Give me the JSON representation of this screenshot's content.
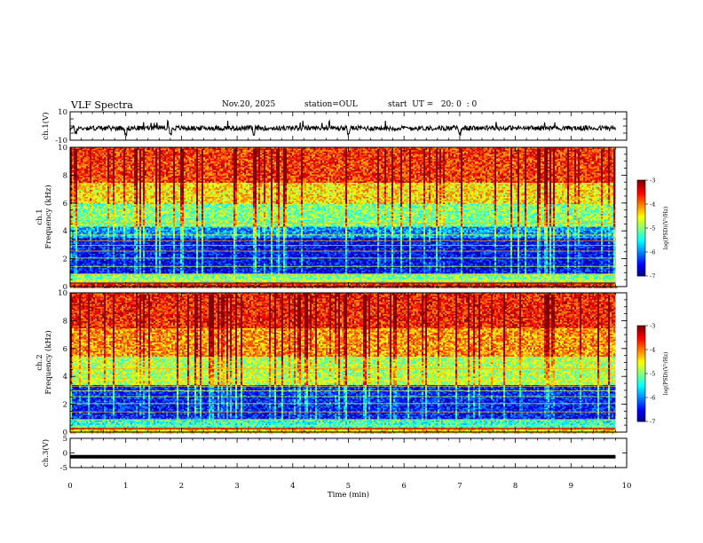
{
  "header": {
    "title": "VLF Spectra",
    "date": "Nov.20, 2025",
    "station": "station=OUL",
    "start": "start  UT =   20: 0  : 0"
  },
  "chart_data": [
    {
      "type": "line",
      "panel": "ch1-waveform",
      "ylabel": "ch.1(V)",
      "ylim": [
        -10,
        10
      ],
      "yticks": [
        "10",
        "-10"
      ],
      "xlim": [
        0,
        10
      ],
      "baseline": 0,
      "series": [
        {
          "values": "noisy waveform centred near 0 V with spikes to about -4 V near t=0.1, 1.0, 1.8, 3.3, 5.0, 7.0 min"
        }
      ],
      "color": "#000000"
    },
    {
      "type": "heatmap",
      "panel": "ch1-spectrogram",
      "ylabel": "ch.1 Frequency (kHz)",
      "ylim": [
        0,
        10
      ],
      "yticks": [
        "0",
        "2",
        "4",
        "6",
        "8",
        "10"
      ],
      "xlim": [
        0,
        10
      ],
      "data_xmax": 9.8,
      "bands": [
        {
          "from": 0.0,
          "to": 0.3,
          "level": -3.6
        },
        {
          "from": 0.3,
          "to": 1.0,
          "level": -5.0
        },
        {
          "from": 1.0,
          "to": 3.5,
          "level": -6.5
        },
        {
          "from": 3.5,
          "to": 4.3,
          "level": -5.9
        },
        {
          "from": 4.3,
          "to": 6.0,
          "level": -5.0
        },
        {
          "from": 6.0,
          "to": 7.5,
          "level": -4.4
        },
        {
          "from": 7.5,
          "to": 10.0,
          "level": -3.7
        }
      ],
      "colorbar": {
        "label": "log(PSD)(V²/Hz)",
        "range": [
          -7,
          -3
        ],
        "ticks": [
          "-3",
          "-4",
          "-5",
          "-6",
          "-7"
        ]
      }
    },
    {
      "type": "heatmap",
      "panel": "ch2-spectrogram",
      "ylabel": "ch.2 Frequency (kHz)",
      "ylim": [
        0,
        10
      ],
      "yticks": [
        "0",
        "2",
        "4",
        "6",
        "8",
        "10"
      ],
      "xlim": [
        0,
        10
      ],
      "data_xmax": 9.8,
      "bands": [
        {
          "from": 0.0,
          "to": 0.4,
          "level": -4.4
        },
        {
          "from": 0.4,
          "to": 1.0,
          "level": -5.3
        },
        {
          "from": 1.0,
          "to": 3.4,
          "level": -6.4
        },
        {
          "from": 3.4,
          "to": 3.7,
          "level": -4.8
        },
        {
          "from": 3.7,
          "to": 5.5,
          "level": -4.8
        },
        {
          "from": 5.5,
          "to": 7.5,
          "level": -4.1
        },
        {
          "from": 7.5,
          "to": 10.0,
          "level": -3.6
        }
      ],
      "colorbar": {
        "label": "log(PSD)(V²/Hz)",
        "range": [
          -7,
          -3
        ],
        "ticks": [
          "-3",
          "-4",
          "-5",
          "-6",
          "-7"
        ]
      }
    },
    {
      "type": "line",
      "panel": "ch3-waveform",
      "ylabel": "ch.3(V)",
      "ylim": [
        -5,
        5
      ],
      "yticks": [
        "5",
        "0",
        "-5"
      ],
      "xlim": [
        0,
        10
      ],
      "series": [
        {
          "values": "flat at about -1.3 V from 0 to 9.8 min"
        }
      ],
      "level": -1.3,
      "color": "#000000",
      "xlabel": "Time  (min)",
      "xticks": [
        "0",
        "1",
        "2",
        "3",
        "4",
        "5",
        "6",
        "7",
        "8",
        "9",
        "10"
      ]
    }
  ]
}
